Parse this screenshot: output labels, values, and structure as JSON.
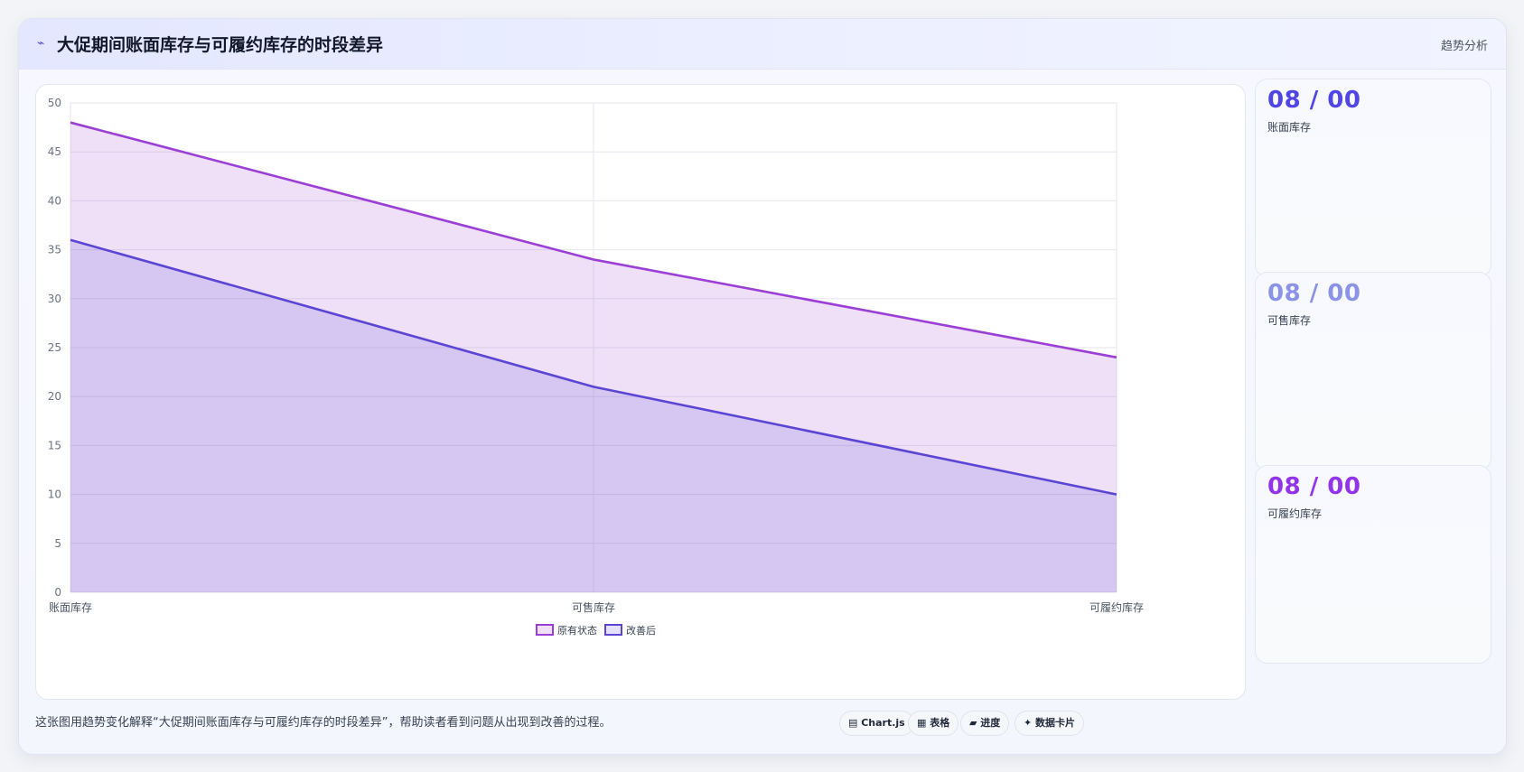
{
  "header": {
    "icon": "trend-icon",
    "title": "大促期间账面库存与可履约库存的时段差异",
    "tag": "趋势分析"
  },
  "cards": [
    {
      "value": "08 / 00",
      "label": "账面库存",
      "color": "#4f46e5"
    },
    {
      "value": "08 / 00",
      "label": "可售库存",
      "color": "#8b93e6"
    },
    {
      "value": "08 / 00",
      "label": "可履约库存",
      "color": "#9333ea"
    }
  ],
  "footer": {
    "note": "这张图用趋势变化解释“大促期间账面库存与可履约库存的时段差异”，帮助读者看到问题从出现到改善的过程。",
    "chips": [
      "▤ Chart.js",
      "▦ 表格",
      "▰ 进度",
      "✦ 数据卡片"
    ]
  },
  "chart_data": {
    "type": "area",
    "categories": [
      "账面库存",
      "可售库存",
      "可履约库存"
    ],
    "series": [
      {
        "name": "原有状态",
        "values": [
          48,
          34,
          24
        ],
        "color": "#9b3fd6",
        "fill": "rgba(155,63,214,0.16)"
      },
      {
        "name": "改善后",
        "values": [
          36,
          21,
          10
        ],
        "color": "#5a45d4",
        "fill": "rgba(90,69,212,0.16)"
      }
    ],
    "ylim": [
      0,
      50
    ],
    "yticks": [
      0,
      5,
      10,
      15,
      20,
      25,
      30,
      35,
      40,
      45,
      50
    ],
    "grid": true,
    "legend": "bottom"
  }
}
